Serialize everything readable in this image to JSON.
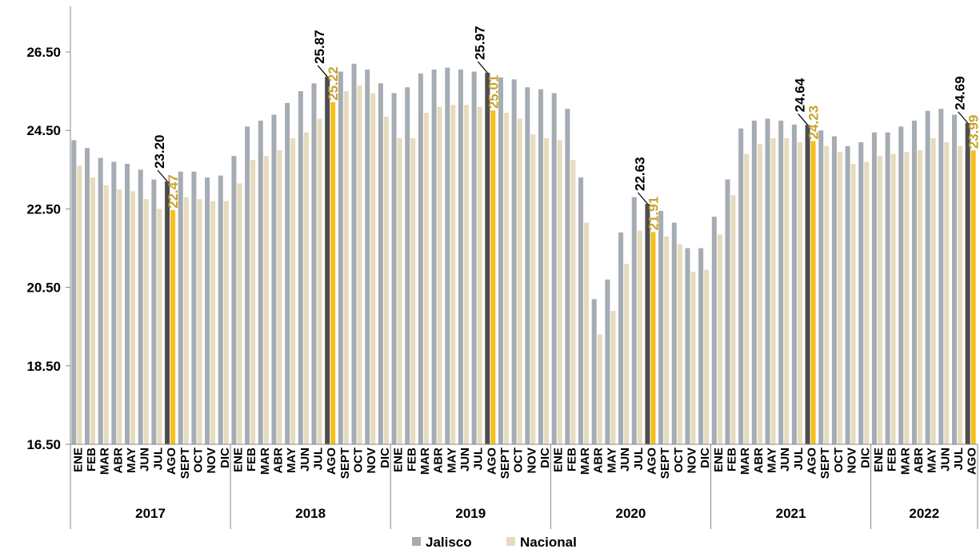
{
  "chart_data": {
    "type": "bar",
    "title": "",
    "xlabel": "",
    "ylabel": "",
    "ylim": [
      16.5,
      26.5
    ],
    "y_ticks": [
      "16.50",
      "18.50",
      "20.50",
      "22.50",
      "24.50",
      "26.50"
    ],
    "grid": false,
    "legend_position": "bottom-center",
    "years": [
      {
        "label": "2017",
        "months": [
          "ENE",
          "FEB",
          "MAR",
          "ABR",
          "MAY",
          "JUN",
          "JUL",
          "AGO",
          "SEPT",
          "OCT",
          "NOV",
          "DIC"
        ]
      },
      {
        "label": "2018",
        "months": [
          "ENE",
          "FEB",
          "MAR",
          "ABR",
          "MAY",
          "JUN",
          "JUL",
          "AGO",
          "SEPT",
          "OCT",
          "NOV",
          "DIC"
        ]
      },
      {
        "label": "2019",
        "months": [
          "ENE",
          "FEB",
          "MAR",
          "ABR",
          "MAY",
          "JUN",
          "JUL",
          "AGO",
          "SEPT",
          "OCT",
          "NOV",
          "DIC"
        ]
      },
      {
        "label": "2020",
        "months": [
          "ENE",
          "FEB",
          "MAR",
          "ABR",
          "MAY",
          "JUN",
          "JUL",
          "AGO",
          "SEPT",
          "OCT",
          "NOV",
          "DIC"
        ]
      },
      {
        "label": "2021",
        "months": [
          "ENE",
          "FEB",
          "MAR",
          "ABR",
          "MAY",
          "JUN",
          "JUL",
          "AGO",
          "SEPT",
          "OCT",
          "NOV",
          "DIC"
        ]
      },
      {
        "label": "2022",
        "months": [
          "ENE",
          "FEB",
          "MAR",
          "ABR",
          "MAY",
          "JUN",
          "JUL",
          "AGO"
        ]
      }
    ],
    "series": [
      {
        "name": "Jalisco",
        "color": "#a6acb3",
        "highlight_color": "#4d4d4d",
        "label_color": "#000000",
        "values": [
          24.25,
          24.05,
          23.8,
          23.7,
          23.65,
          23.5,
          23.25,
          23.2,
          23.45,
          23.45,
          23.3,
          23.35,
          23.85,
          24.6,
          24.75,
          24.9,
          25.2,
          25.5,
          25.7,
          25.87,
          26.0,
          26.2,
          26.05,
          25.7,
          25.45,
          25.6,
          25.95,
          26.05,
          26.1,
          26.05,
          26.0,
          25.97,
          25.85,
          25.8,
          25.6,
          25.55,
          25.45,
          25.05,
          23.3,
          20.2,
          20.7,
          21.9,
          22.8,
          22.63,
          22.45,
          22.15,
          21.5,
          21.5,
          22.3,
          23.25,
          24.55,
          24.75,
          24.8,
          24.75,
          24.65,
          24.64,
          24.5,
          24.35,
          24.1,
          24.2,
          24.45,
          24.45,
          24.6,
          24.75,
          25.0,
          25.05,
          24.9,
          24.69
        ]
      },
      {
        "name": "Nacional",
        "color": "#e6dbbd",
        "highlight_color": "#f5c01b",
        "label_color": "#c9a227",
        "values": [
          23.6,
          23.3,
          23.1,
          23.0,
          22.95,
          22.75,
          22.5,
          22.47,
          22.8,
          22.75,
          22.7,
          22.7,
          23.15,
          23.75,
          23.85,
          24.0,
          24.3,
          24.45,
          24.8,
          25.22,
          25.5,
          25.65,
          25.45,
          24.85,
          24.3,
          24.3,
          24.95,
          25.1,
          25.15,
          25.15,
          25.1,
          25.01,
          24.95,
          24.8,
          24.4,
          24.3,
          24.25,
          23.75,
          22.15,
          19.3,
          19.9,
          21.1,
          21.95,
          21.91,
          21.8,
          21.6,
          20.9,
          20.95,
          21.85,
          22.85,
          23.9,
          24.15,
          24.3,
          24.3,
          24.2,
          24.23,
          24.1,
          23.95,
          23.65,
          23.7,
          23.85,
          23.9,
          23.95,
          24.0,
          24.3,
          24.2,
          24.1,
          23.99
        ]
      }
    ],
    "annotations": [
      {
        "series": "Jalisco",
        "index": 7,
        "text": "23.20"
      },
      {
        "series": "Nacional",
        "index": 7,
        "text": "22.47"
      },
      {
        "series": "Jalisco",
        "index": 19,
        "text": "25.87"
      },
      {
        "series": "Nacional",
        "index": 19,
        "text": "25.22"
      },
      {
        "series": "Jalisco",
        "index": 31,
        "text": "25.97"
      },
      {
        "series": "Nacional",
        "index": 31,
        "text": "25.01"
      },
      {
        "series": "Jalisco",
        "index": 43,
        "text": "22.63"
      },
      {
        "series": "Nacional",
        "index": 43,
        "text": "21.91"
      },
      {
        "series": "Jalisco",
        "index": 55,
        "text": "24.64"
      },
      {
        "series": "Nacional",
        "index": 55,
        "text": "24.23"
      },
      {
        "series": "Jalisco",
        "index": 67,
        "text": "24.69"
      },
      {
        "series": "Nacional",
        "index": 67,
        "text": "23.99"
      }
    ]
  }
}
